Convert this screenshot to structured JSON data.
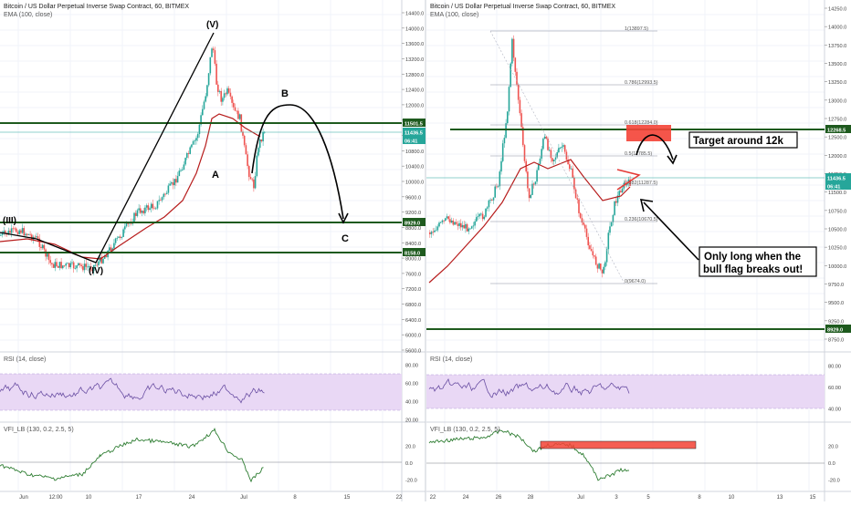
{
  "panels": [
    {
      "title": "Bitcoin / US Dollar Perpetual Inverse Swap Contract, 60, BITMEX",
      "indicator": "EMA (100, close)",
      "rsi_title": "RSI (14, close)",
      "vfi_title": "VFI_LB (130, 0.2, 2.5, 5)",
      "price_axis": [
        "14400.0",
        "14000.0",
        "13600.0",
        "13200.0",
        "12800.0",
        "12400.0",
        "12000.0",
        "11600.0",
        "11200.0",
        "10800.0",
        "10400.0",
        "10000.0",
        "9600.0",
        "9200.0",
        "8800.0",
        "8400.0",
        "8000.0",
        "7600.0",
        "7200.0",
        "6800.0",
        "6400.0",
        "6000.0",
        "5600.0"
      ],
      "rsi_axis": [
        "80.00",
        "60.00",
        "40.00",
        "20.00"
      ],
      "vfi_axis": [
        "20.0",
        "0.0",
        "-20.0"
      ],
      "time_axis": [
        "Jun",
        "12:00",
        "10",
        "17",
        "24",
        "Jul",
        "8",
        "15",
        "22"
      ],
      "price_labels": [
        {
          "text": "11501.5",
          "color": "#1e5a1e"
        },
        {
          "text": "11436.5",
          "color": "#26a69a"
        },
        {
          "text": "06:41",
          "color": "#26a69a"
        },
        {
          "text": "8929.0",
          "color": "#1e5a1e"
        },
        {
          "text": "8158.0",
          "color": "#1e5a1e"
        }
      ],
      "wave_labels": [
        "(III)",
        "(IV)",
        "(V)",
        "A",
        "B",
        "C"
      ]
    },
    {
      "title": "Bitcoin / US Dollar Perpetual Inverse Swap Contract, 60, BITMEX",
      "indicator": "EMA (100, close)",
      "rsi_title": "RSI (14, close)",
      "vfi_title": "VFI_LB (130, 0.2, 2.5, 5)",
      "price_axis": [
        "14250.0",
        "14000.0",
        "13750.0",
        "13500.0",
        "13250.0",
        "13000.0",
        "12750.0",
        "12500.0",
        "12000.0",
        "11750.0",
        "11500.0",
        "10750.0",
        "10500.0",
        "10250.0",
        "10000.0",
        "9750.0",
        "9500.0",
        "9250.0",
        "8750.0"
      ],
      "rsi_axis": [
        "80.00",
        "60.00",
        "40.00"
      ],
      "vfi_axis": [
        "20.0",
        "0.0",
        "-20.0"
      ],
      "time_axis": [
        "22",
        "24",
        "26",
        "28",
        "Jul",
        "3",
        "5",
        "8",
        "10",
        "13",
        "15"
      ],
      "price_labels": [
        {
          "text": "12268.5",
          "color": "#1e5a1e"
        },
        {
          "text": "11436.5",
          "color": "#26a69a"
        },
        {
          "text": "06:41",
          "color": "#26a69a"
        },
        {
          "text": "8929.0",
          "color": "#1e5a1e"
        }
      ],
      "fib_levels": [
        "1(13897.5)",
        "0.786(12993.5)",
        "0.618(12284.0)",
        "0.5(11785.5)",
        "0.382(11287.5)",
        "0.236(10670.5)",
        "0(9674.0)"
      ],
      "annotations": [
        "Target around 12k",
        "Only long when the\nbull flag breaks out!"
      ]
    }
  ],
  "colors": {
    "ema": "#b71c1c",
    "level": "#1e5a1e",
    "rsi": "#6a4fa3",
    "rsi_band": "#e9d8f5",
    "vfi": "#2e7d32",
    "candle_up": "#26a69a",
    "candle_down": "#ef5350",
    "target_box": "#f44336"
  },
  "chart_data": [
    {
      "type": "line",
      "title": "Bitcoin / US Dollar Perpetual Inverse Swap Contract, 60, BITMEX",
      "series": [
        {
          "name": "EMA (100, close)",
          "x": [
            "Jun",
            "10",
            "17",
            "24",
            "Jul"
          ],
          "values": [
            8300,
            8100,
            8600,
            11600,
            11400
          ]
        }
      ],
      "ylim": [
        5600,
        14400
      ],
      "levels": [
        11501.5,
        8929.0,
        8158.0
      ],
      "grid": true
    },
    {
      "type": "line",
      "title": "Bitcoin / US Dollar Perpetual Inverse Swap Contract, 60, BITMEX",
      "series": [
        {
          "name": "EMA (100, close)",
          "x": [
            "22",
            "24",
            "26",
            "28",
            "Jul",
            "3"
          ],
          "values": [
            9100,
            9700,
            10900,
            11800,
            11600,
            11300
          ]
        }
      ],
      "ylim": [
        8750,
        14250
      ],
      "levels": [
        12268.5,
        8929.0
      ],
      "fibonacci": [
        13897.5,
        12993.5,
        12284.0,
        11785.5,
        11287.5,
        10670.5,
        9674.0
      ],
      "grid": true
    }
  ]
}
